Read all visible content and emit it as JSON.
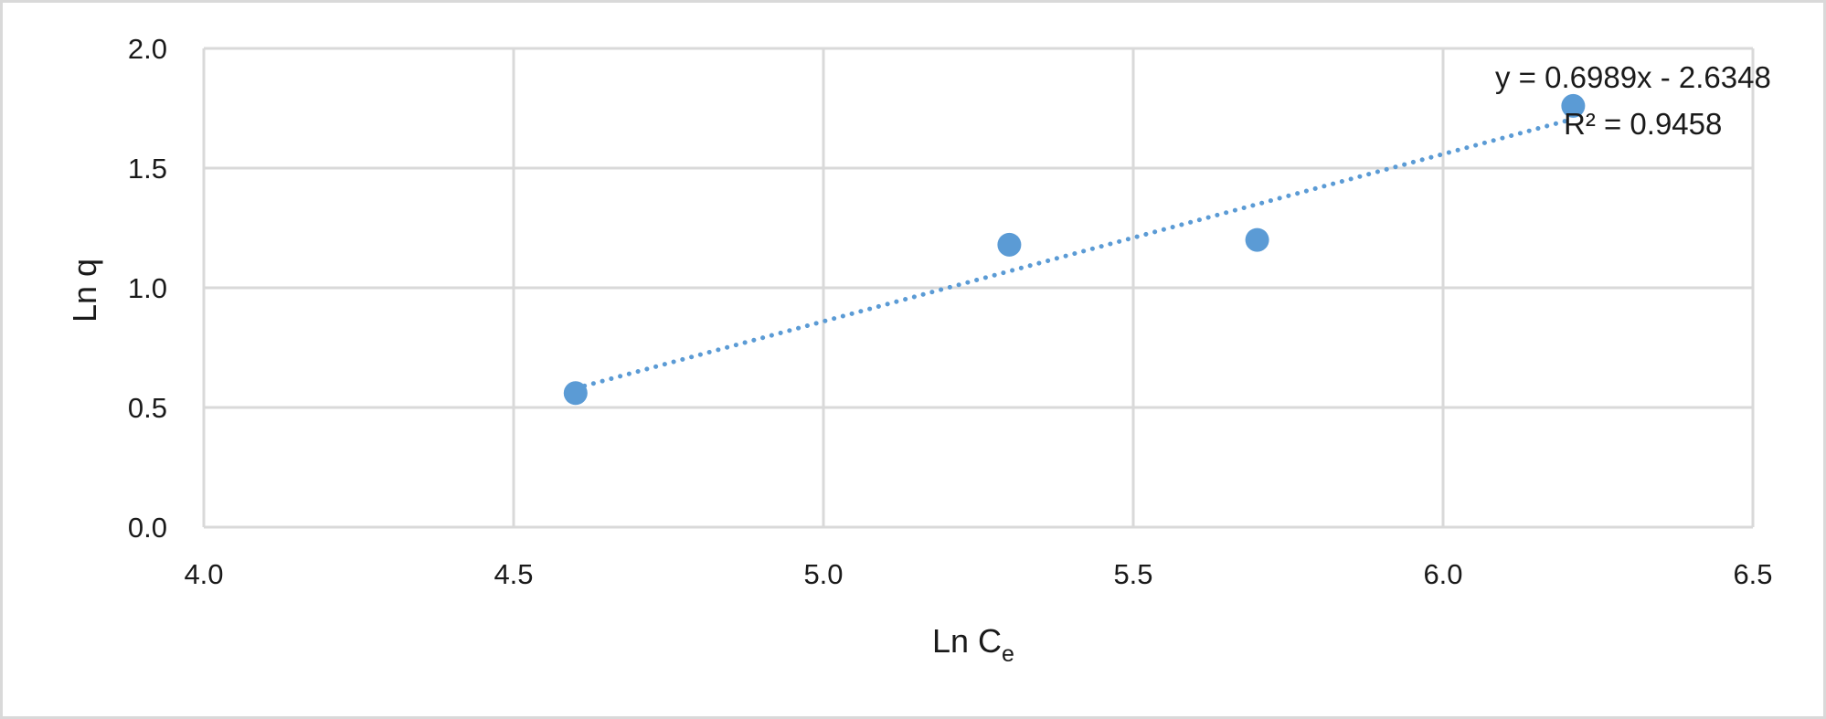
{
  "chart_data": {
    "type": "scatter",
    "xlabel": "Ln C",
    "xlabel_subscript": "e",
    "ylabel": "Ln q",
    "xlim": [
      4.0,
      6.5
    ],
    "ylim": [
      0.0,
      2.0
    ],
    "x_ticks": [
      "4.0",
      "4.5",
      "5.0",
      "5.5",
      "6.0",
      "6.5"
    ],
    "y_ticks": [
      "0.0",
      "0.5",
      "1.0",
      "1.5",
      "2.0"
    ],
    "grid": true,
    "series": [
      {
        "x": [
          4.6,
          5.3,
          5.7,
          6.21
        ],
        "y": [
          0.56,
          1.18,
          1.2,
          1.76
        ],
        "color": "#5b9bd5"
      }
    ],
    "trendline": {
      "type": "linear",
      "slope": 0.6989,
      "intercept": -2.6348,
      "x_range": [
        4.6,
        6.21
      ],
      "style": "dotted",
      "color": "#5b9bd5",
      "equation_label": "y = 0.6989x - 2.6348",
      "r2_label": "R² = 0.9458"
    },
    "border_color": "#d9d9d9"
  }
}
